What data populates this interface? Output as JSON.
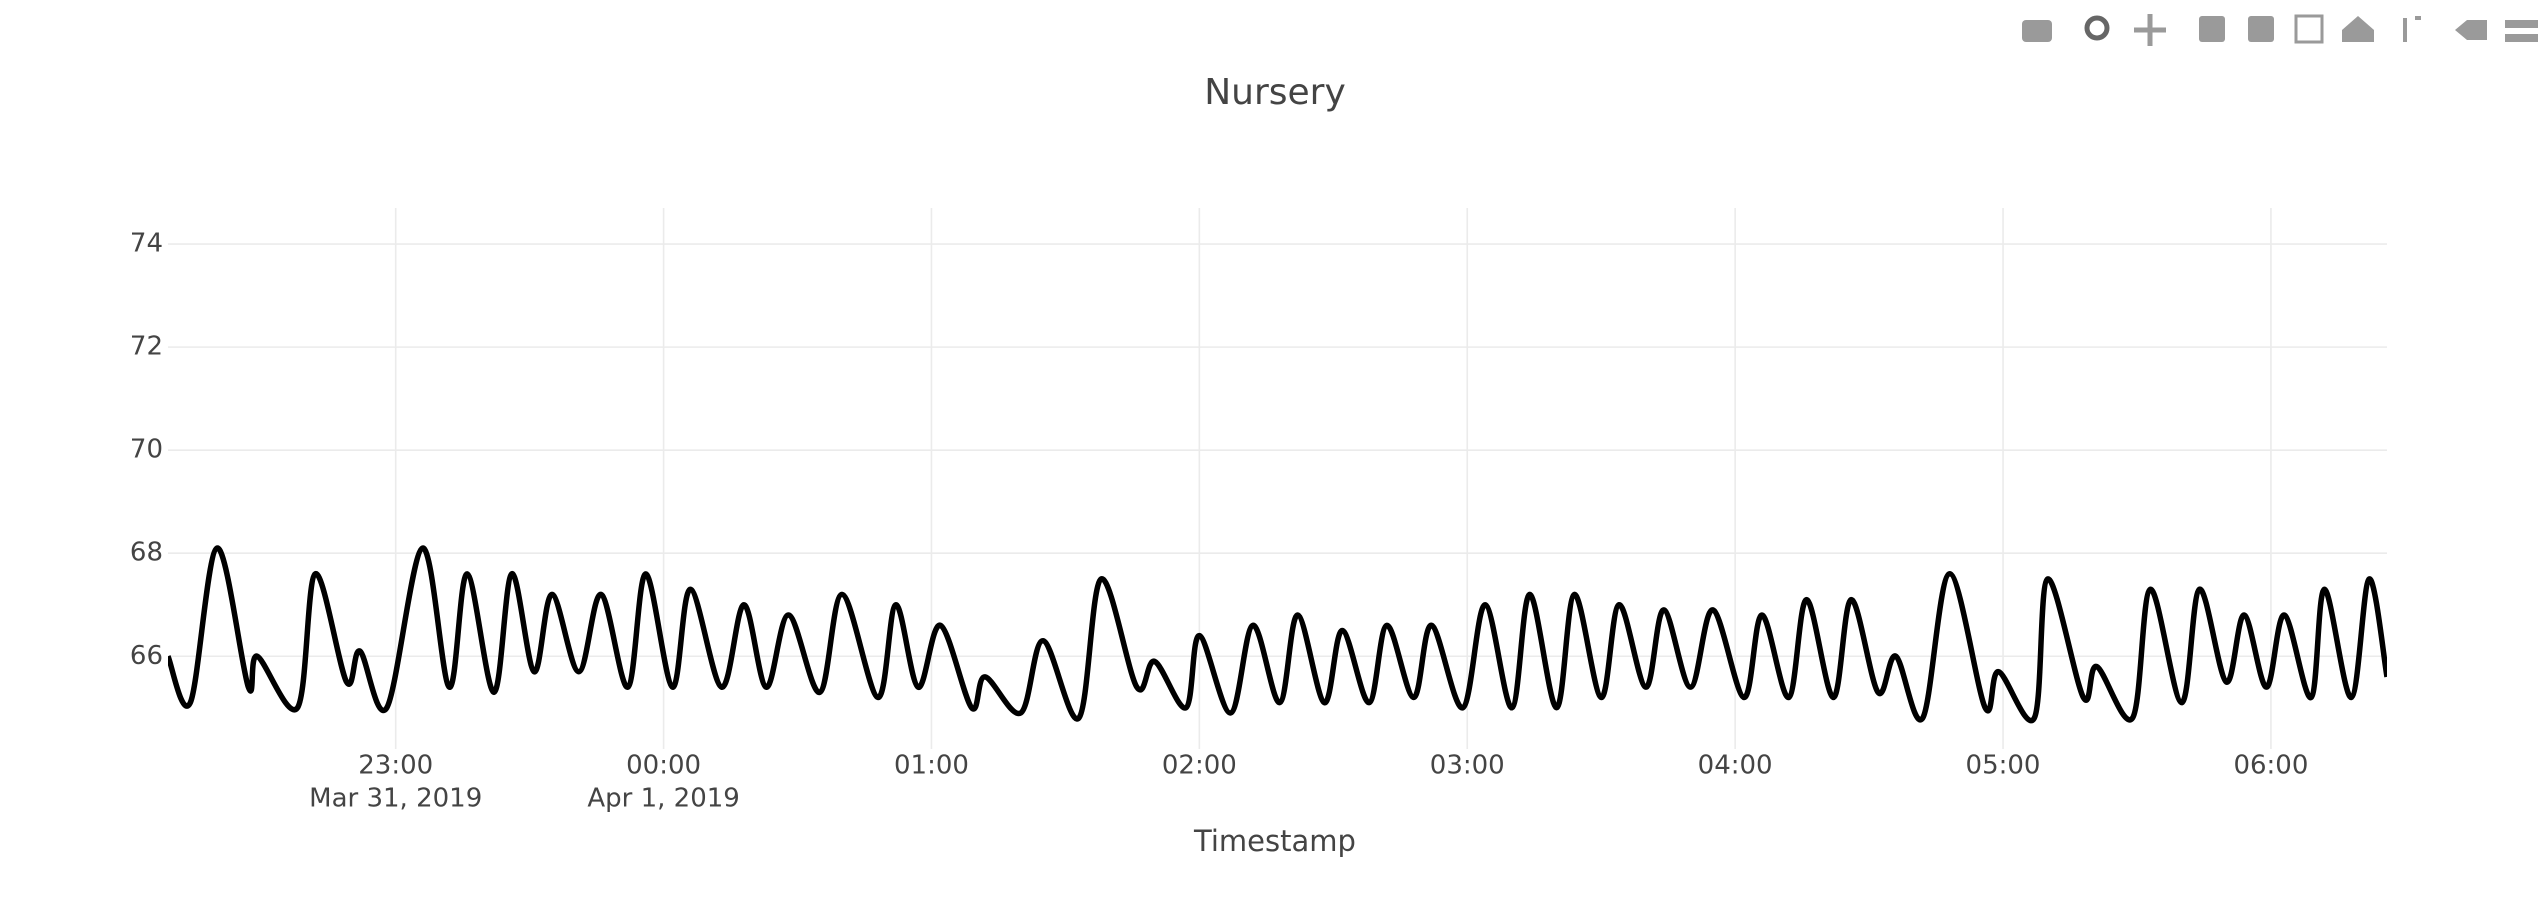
{
  "chart_data": {
    "type": "line",
    "title": "Nursery",
    "x_label": "Timestamp",
    "x": [
      "2019-03-31 22:09",
      "2019-03-31 22:14",
      "2019-03-31 22:20",
      "2019-03-31 22:27",
      "2019-03-31 22:29",
      "2019-03-31 22:38",
      "2019-03-31 22:42",
      "2019-03-31 22:49",
      "2019-03-31 22:52",
      "2019-03-31 22:58",
      "2019-03-31 23:06",
      "2019-03-31 23:12",
      "2019-03-31 23:16",
      "2019-03-31 23:22",
      "2019-03-31 23:26",
      "2019-03-31 23:31",
      "2019-03-31 23:35",
      "2019-03-31 23:41",
      "2019-03-31 23:46",
      "2019-03-31 23:52",
      "2019-03-31 23:56",
      "2019-04-01 00:02",
      "2019-04-01 00:06",
      "2019-04-01 00:13",
      "2019-04-01 00:18",
      "2019-04-01 00:23",
      "2019-04-01 00:28",
      "2019-04-01 00:35",
      "2019-04-01 00:40",
      "2019-04-01 00:48",
      "2019-04-01 00:52",
      "2019-04-01 00:57",
      "2019-04-01 01:02",
      "2019-04-01 01:09",
      "2019-04-01 01:12",
      "2019-04-01 01:20",
      "2019-04-01 01:25",
      "2019-04-01 01:33",
      "2019-04-01 01:38",
      "2019-04-01 01:46",
      "2019-04-01 01:50",
      "2019-04-01 01:57",
      "2019-04-01 02:00",
      "2019-04-01 02:07",
      "2019-04-01 02:12",
      "2019-04-01 02:18",
      "2019-04-01 02:22",
      "2019-04-01 02:28",
      "2019-04-01 02:32",
      "2019-04-01 02:38",
      "2019-04-01 02:42",
      "2019-04-01 02:48",
      "2019-04-01 02:52",
      "2019-04-01 02:59",
      "2019-04-01 03:04",
      "2019-04-01 03:10",
      "2019-04-01 03:14",
      "2019-04-01 03:20",
      "2019-04-01 03:24",
      "2019-04-01 03:30",
      "2019-04-01 03:34",
      "2019-04-01 03:40",
      "2019-04-01 03:44",
      "2019-04-01 03:50",
      "2019-04-01 03:55",
      "2019-04-01 04:02",
      "2019-04-01 04:06",
      "2019-04-01 04:12",
      "2019-04-01 04:16",
      "2019-04-01 04:22",
      "2019-04-01 04:26",
      "2019-04-01 04:32",
      "2019-04-01 04:36",
      "2019-04-01 04:42",
      "2019-04-01 04:48",
      "2019-04-01 04:56",
      "2019-04-01 04:59",
      "2019-04-01 05:07",
      "2019-04-01 05:10",
      "2019-04-01 05:18",
      "2019-04-01 05:21",
      "2019-04-01 05:29",
      "2019-04-01 05:33",
      "2019-04-01 05:40",
      "2019-04-01 05:44",
      "2019-04-01 05:50",
      "2019-04-01 05:54",
      "2019-04-01 05:59",
      "2019-04-01 06:03",
      "2019-04-01 06:09",
      "2019-04-01 06:12",
      "2019-04-01 06:18",
      "2019-04-01 06:22",
      "2019-04-01 06:26"
    ],
    "series": [
      {
        "color": "#000000",
        "values": [
          66.0,
          65.1,
          68.1,
          65.4,
          66.0,
          65.0,
          67.6,
          65.5,
          66.1,
          65.0,
          68.1,
          65.4,
          67.6,
          65.3,
          67.6,
          65.7,
          67.2,
          65.7,
          67.2,
          65.4,
          67.6,
          65.4,
          67.3,
          65.4,
          67.0,
          65.4,
          66.8,
          65.3,
          67.2,
          65.2,
          67.0,
          65.4,
          66.6,
          65.0,
          65.6,
          64.9,
          66.3,
          64.8,
          67.5,
          65.4,
          65.9,
          65.0,
          66.4,
          64.9,
          66.6,
          65.1,
          66.8,
          65.1,
          66.5,
          65.1,
          66.6,
          65.2,
          66.6,
          65.0,
          67.0,
          65.0,
          67.2,
          65.0,
          67.2,
          65.2,
          67.0,
          65.4,
          66.9,
          65.4,
          66.9,
          65.2,
          66.8,
          65.2,
          67.1,
          65.2,
          67.1,
          65.3,
          66.0,
          64.8,
          67.6,
          65.0,
          65.7,
          64.8,
          67.5,
          65.2,
          65.8,
          64.8,
          67.3,
          65.1,
          67.3,
          65.5,
          66.8,
          65.4,
          66.8,
          65.2,
          67.3,
          65.2,
          67.5,
          65.6
        ]
      }
    ],
    "xlim": [
      "2019-03-31 22:09",
      "2019-04-01 06:26"
    ],
    "xticks": [
      {
        "value": "2019-03-31 23:00",
        "label": "23:00"
      },
      {
        "value": "2019-04-01 00:00",
        "label": "00:00"
      },
      {
        "value": "2019-04-01 01:00",
        "label": "01:00"
      },
      {
        "value": "2019-04-01 02:00",
        "label": "02:00"
      },
      {
        "value": "2019-04-01 03:00",
        "label": "03:00"
      },
      {
        "value": "2019-04-01 04:00",
        "label": "04:00"
      },
      {
        "value": "2019-04-01 05:00",
        "label": "05:00"
      },
      {
        "value": "2019-04-01 06:00",
        "label": "06:00"
      }
    ],
    "xtick_sublabels": [
      "Mar 31, 2019",
      "Apr 1, 2019",
      null,
      null,
      null,
      null,
      null,
      null
    ],
    "ylim": [
      64.2,
      74.7
    ],
    "yticks": [
      66,
      68,
      70,
      72,
      74
    ],
    "grid": true
  }
}
